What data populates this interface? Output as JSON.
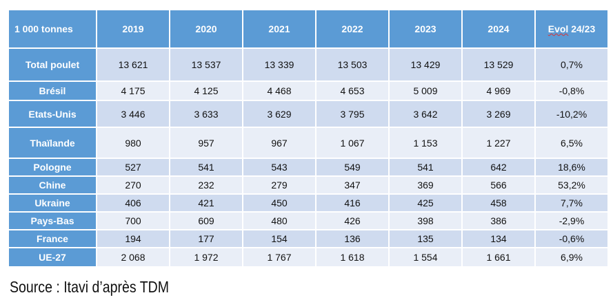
{
  "chart_data": {
    "type": "table",
    "unit_header": "1 000 tonnes",
    "columns": [
      "2019",
      "2020",
      "2021",
      "2022",
      "2023",
      "2024"
    ],
    "evol_header_word": "Evol",
    "evol_header_rest": " 24/23",
    "rows": [
      {
        "label": "Total poulet",
        "values": [
          "13 621",
          "13 537",
          "13 339",
          "13 503",
          "13 429",
          "13 529"
        ],
        "evol": "0,7%"
      },
      {
        "label": "Brésil",
        "values": [
          "4 175",
          "4 125",
          "4 468",
          "4 653",
          "5 009",
          "4 969"
        ],
        "evol": "-0,8%"
      },
      {
        "label": "Etats-Unis",
        "values": [
          "3 446",
          "3 633",
          "3 629",
          "3 795",
          "3 642",
          "3 269"
        ],
        "evol": "-10,2%"
      },
      {
        "label": "Thaïlande",
        "values": [
          "980",
          "957",
          "967",
          "1 067",
          "1 153",
          "1 227"
        ],
        "evol": "6,5%"
      },
      {
        "label": "Pologne",
        "values": [
          "527",
          "541",
          "543",
          "549",
          "541",
          "642"
        ],
        "evol": "18,6%"
      },
      {
        "label": "Chine",
        "values": [
          "270",
          "232",
          "279",
          "347",
          "369",
          "566"
        ],
        "evol": "53,2%"
      },
      {
        "label": "Ukraine",
        "values": [
          "406",
          "421",
          "450",
          "416",
          "425",
          "458"
        ],
        "evol": "7,7%"
      },
      {
        "label": "Pays-Bas",
        "values": [
          "700",
          "609",
          "480",
          "426",
          "398",
          "386"
        ],
        "evol": "-2,9%"
      },
      {
        "label": "France",
        "values": [
          "194",
          "177",
          "154",
          "136",
          "135",
          "134"
        ],
        "evol": "-0,6%"
      },
      {
        "label": "UE-27",
        "values": [
          "2 068",
          "1 972",
          "1 767",
          "1 618",
          "1 554",
          "1 661"
        ],
        "evol": "6,9%"
      }
    ],
    "colors": {
      "header": "#5b9bd5",
      "row_dark": "#cfdbef",
      "row_light": "#e9eef7"
    }
  },
  "source": "Source : Itavi d’après TDM"
}
